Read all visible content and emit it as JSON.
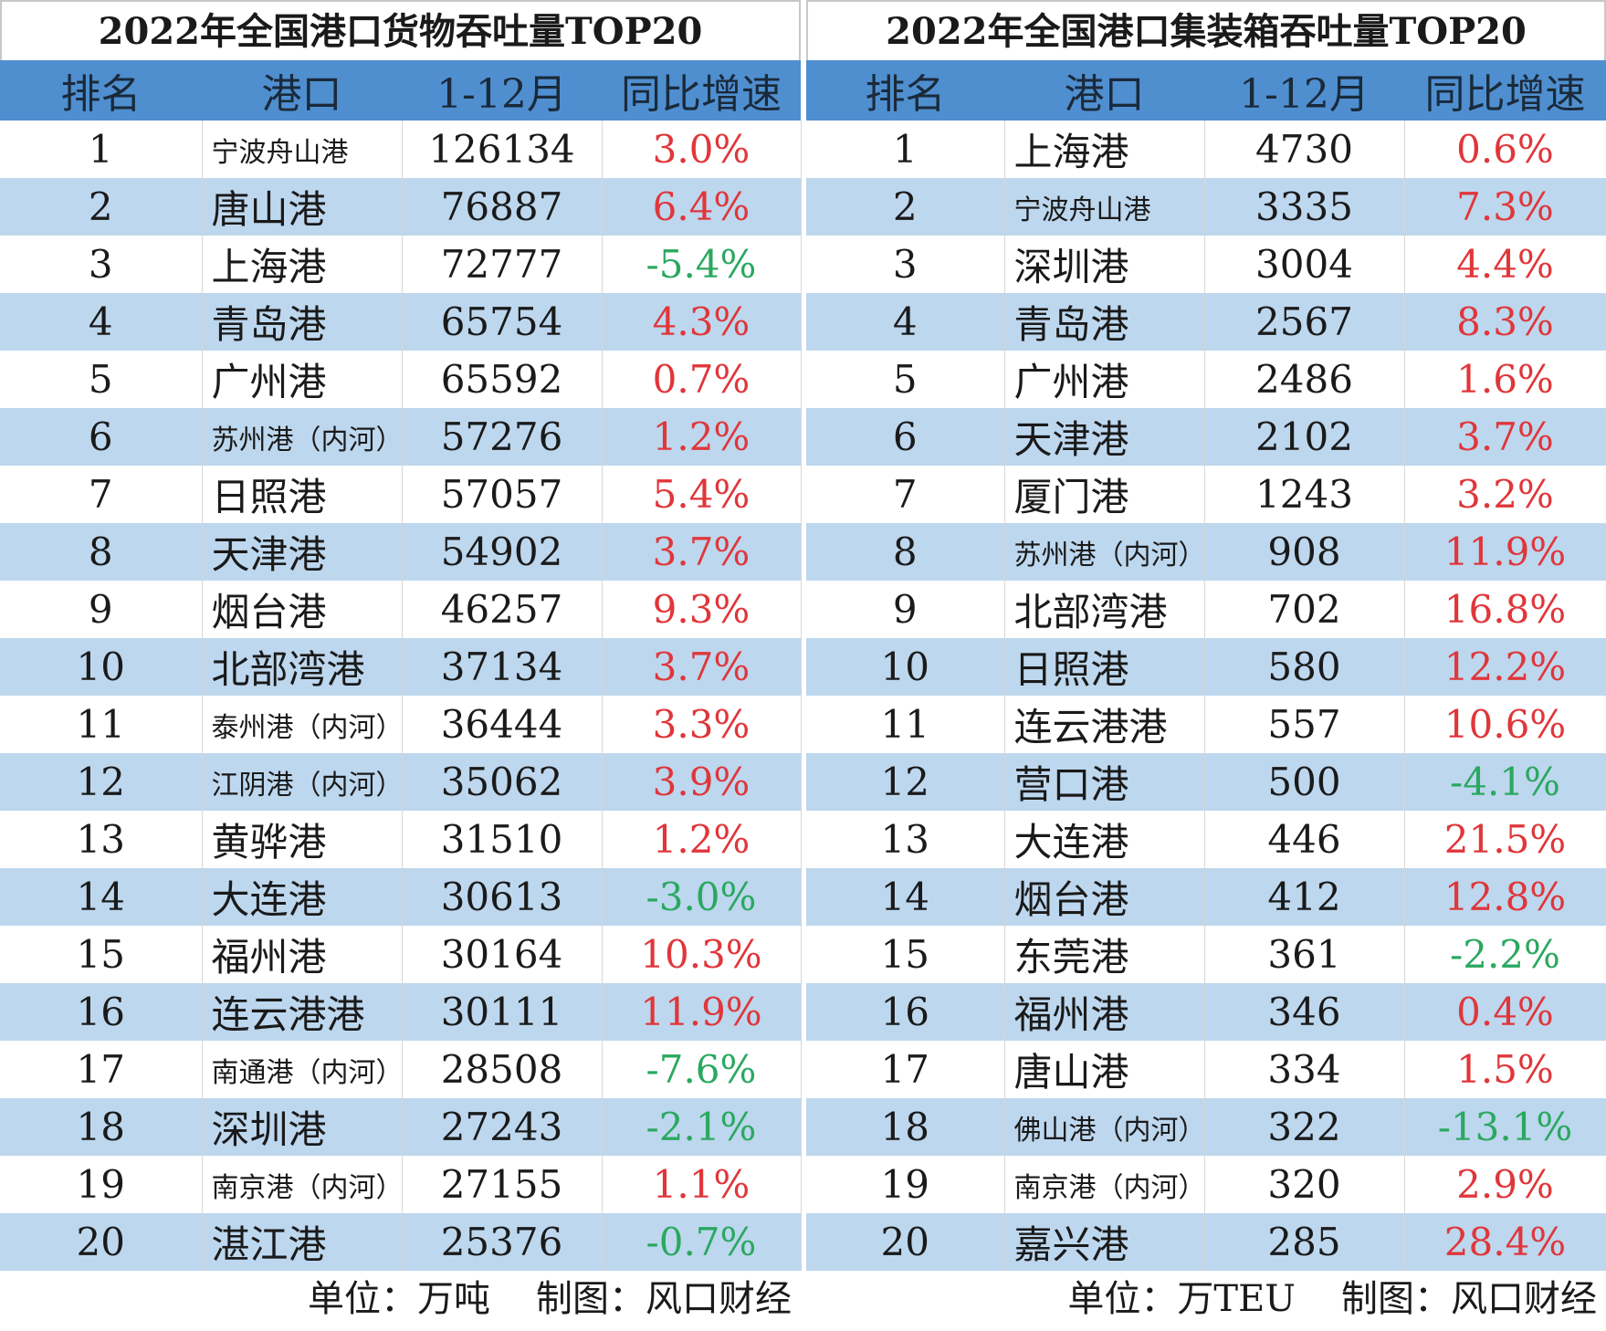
{
  "tables": [
    {
      "title": "2022年全国港口货物吞吐量TOP20",
      "header": [
        "排名",
        "港口",
        "1-12月",
        "同比增速"
      ],
      "rows": [
        [
          1,
          "宁波舟山港",
          126134,
          "3.0%"
        ],
        [
          2,
          "唐山港",
          76887,
          "6.4%"
        ],
        [
          3,
          "上海港",
          72777,
          "-5.4%"
        ],
        [
          4,
          "青岛港",
          65754,
          "4.3%"
        ],
        [
          5,
          "广州港",
          65592,
          "0.7%"
        ],
        [
          6,
          "苏州港（内河）",
          57276,
          "1.2%"
        ],
        [
          7,
          "日照港",
          57057,
          "5.4%"
        ],
        [
          8,
          "天津港",
          54902,
          "3.7%"
        ],
        [
          9,
          "烟台港",
          46257,
          "9.3%"
        ],
        [
          10,
          "北部湾港",
          37134,
          "3.7%"
        ],
        [
          11,
          "泰州港（内河）",
          36444,
          "3.3%"
        ],
        [
          12,
          "江阴港（内河）",
          35062,
          "3.9%"
        ],
        [
          13,
          "黄骅港",
          31510,
          "1.2%"
        ],
        [
          14,
          "大连港",
          30613,
          "-3.0%"
        ],
        [
          15,
          "福州港",
          30164,
          "10.3%"
        ],
        [
          16,
          "连云港港",
          30111,
          "11.9%"
        ],
        [
          17,
          "南通港（内河）",
          28508,
          "-7.6%"
        ],
        [
          18,
          "深圳港",
          27243,
          "-2.1%"
        ],
        [
          19,
          "南京港（内河）",
          27155,
          "1.1%"
        ],
        [
          20,
          "湛江港",
          25376,
          "-0.7%"
        ]
      ],
      "footer": [
        "单位：万吨",
        "制图：风口财经"
      ]
    },
    {
      "title": "2022年全国港口集装箱吞吐量TOP20",
      "header": [
        "排名",
        "港口",
        "1-12月",
        "同比增速"
      ],
      "rows": [
        [
          1,
          "上海港",
          4730,
          "0.6%"
        ],
        [
          2,
          "宁波舟山港",
          3335,
          "7.3%"
        ],
        [
          3,
          "深圳港",
          3004,
          "4.4%"
        ],
        [
          4,
          "青岛港",
          2567,
          "8.3%"
        ],
        [
          5,
          "广州港",
          2486,
          "1.6%"
        ],
        [
          6,
          "天津港",
          2102,
          "3.7%"
        ],
        [
          7,
          "厦门港",
          1243,
          "3.2%"
        ],
        [
          8,
          "苏州港（内河）",
          908,
          "11.9%"
        ],
        [
          9,
          "北部湾港",
          702,
          "16.8%"
        ],
        [
          10,
          "日照港",
          580,
          "12.2%"
        ],
        [
          11,
          "连云港港",
          557,
          "10.6%"
        ],
        [
          12,
          "营口港",
          500,
          "-4.1%"
        ],
        [
          13,
          "大连港",
          446,
          "21.5%"
        ],
        [
          14,
          "烟台港",
          412,
          "12.8%"
        ],
        [
          15,
          "东莞港",
          361,
          "-2.2%"
        ],
        [
          16,
          "福州港",
          346,
          "0.4%"
        ],
        [
          17,
          "唐山港",
          334,
          "1.5%"
        ],
        [
          18,
          "佛山港（内河）",
          322,
          "-13.1%"
        ],
        [
          19,
          "南京港（内河）",
          320,
          "2.9%"
        ],
        [
          20,
          "嘉兴港",
          285,
          "28.4%"
        ]
      ],
      "footer": [
        "单位：万TEU",
        "制图：风口财经"
      ]
    }
  ]
}
